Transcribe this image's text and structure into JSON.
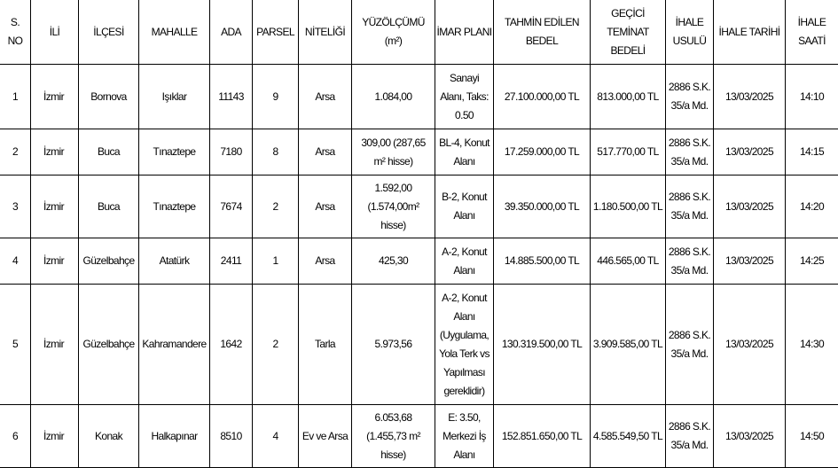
{
  "headers": [
    "S.\nNO",
    "İLİ",
    "İLÇESİ",
    "MAHALLE",
    "ADA",
    "PARSEL",
    "NİTELİĞİ",
    "YÜZÖLÇÜMÜ\n(m²)",
    "İMAR PLANI",
    "TAHMİN EDİLEN\nBEDEL",
    "GEÇİCİ\nTEMİNAT\nBEDELİ",
    "İHALE\nUSULÜ",
    "İHALE TARİHİ",
    "İHALE\nSAATİ"
  ],
  "rows": [
    [
      "1",
      "İzmir",
      "Bornova",
      "Işıklar",
      "11143",
      "9",
      "Arsa",
      "1.084,00",
      "Sanayi\nAlanı, Taks:\n0.50",
      "27.100.000,00 TL",
      "813.000,00 TL",
      "2886 S.K.\n35/a Md.",
      "13/03/2025",
      "14:10"
    ],
    [
      "2",
      "İzmir",
      "Buca",
      "Tınaztepe",
      "7180",
      "8",
      "Arsa",
      "309,00 (287,65\nm² hisse)",
      "BL-4, Konut\nAlanı",
      "17.259.000,00 TL",
      "517.770,00 TL",
      "2886 S.K.\n35/a Md.",
      "13/03/2025",
      "14:15"
    ],
    [
      "3",
      "İzmir",
      "Buca",
      "Tınaztepe",
      "7674",
      "2",
      "Arsa",
      "1.592,00\n(1.574,00m²\nhisse)",
      "B-2, Konut\nAlanı",
      "39.350.000,00 TL",
      "1.180.500,00 TL",
      "2886 S.K.\n35/a Md.",
      "13/03/2025",
      "14:20"
    ],
    [
      "4",
      "İzmir",
      "Güzelbahçe",
      "Atatürk",
      "2411",
      "1",
      "Arsa",
      "425,30",
      "A-2, Konut\nAlanı",
      "14.885.500,00 TL",
      "446.565,00 TL",
      "2886 S.K.\n35/a Md.",
      "13/03/2025",
      "14:25"
    ],
    [
      "5",
      "İzmir",
      "Güzelbahçe",
      "Kahramandere",
      "1642",
      "2",
      "Tarla",
      "5.973,56",
      "A-2, Konut\nAlanı\n(Uygulama,\nYola Terk vs\nYapılması\ngereklidir)",
      "130.319.500,00 TL",
      "3.909.585,00 TL",
      "2886 S.K.\n35/a Md.",
      "13/03/2025",
      "14:30"
    ],
    [
      "6",
      "İzmir",
      "Konak",
      "Halkapınar",
      "8510",
      "4",
      "Ev ve Arsa",
      "6.053,68\n(1.455,73 m²\nhisse)",
      "E: 3.50,\nMerkezi İş\nAlanı",
      "152.851.650,00 TL",
      "4.585.549,50 TL",
      "2886 S.K.\n35/a Md.",
      "13/03/2025",
      "14:50"
    ]
  ]
}
